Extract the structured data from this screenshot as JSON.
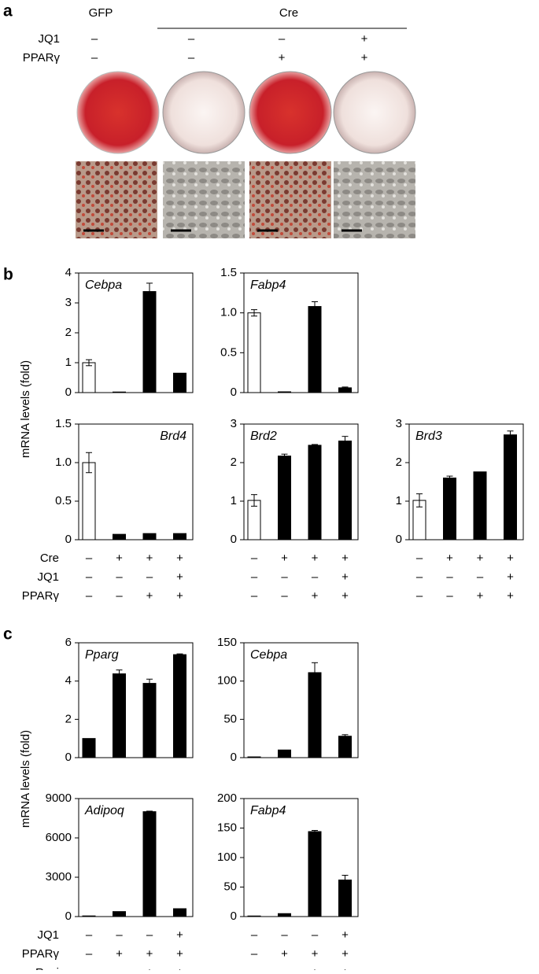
{
  "figure": {
    "panels": {
      "a": "a",
      "b": "b",
      "c": "c"
    },
    "a": {
      "headers": {
        "gfp": "GFP",
        "cre": "Cre"
      },
      "rows": [
        {
          "label": "JQ1",
          "signs": [
            "–",
            "–",
            "–",
            "+"
          ]
        },
        {
          "label": "PPARγ",
          "signs": [
            "–",
            "–",
            "+",
            "+"
          ]
        }
      ]
    },
    "b": {
      "ylabel": "mRNA levels (fold)",
      "rows": [
        {
          "label": "Cre",
          "signs": [
            "–",
            "+",
            "+",
            "+"
          ]
        },
        {
          "label": "JQ1",
          "signs": [
            "–",
            "–",
            "–",
            "+"
          ]
        },
        {
          "label": "PPARγ",
          "signs": [
            "–",
            "–",
            "+",
            "+"
          ]
        }
      ]
    },
    "c": {
      "ylabel": "mRNA levels (fold)",
      "rows": [
        {
          "label": "JQ1",
          "signs": [
            "–",
            "–",
            "–",
            "+"
          ]
        },
        {
          "label": "PPARγ",
          "signs": [
            "–",
            "+",
            "+",
            "+"
          ]
        },
        {
          "label": "Rosi",
          "signs": [
            "–",
            "–",
            "+",
            "+"
          ]
        }
      ]
    }
  },
  "chart_data": [
    {
      "type": "bar",
      "title": "Cebpa",
      "title_corner": "upper left",
      "values": [
        1.0,
        0.02,
        3.38,
        0.65
      ],
      "errors": [
        0.1,
        0,
        0.28,
        0
      ],
      "colors": [
        "#ffffff",
        "#000000",
        "#000000",
        "#000000"
      ],
      "ylim": [
        0,
        4
      ],
      "yticks": [
        0,
        1,
        2,
        3,
        4
      ]
    },
    {
      "type": "bar",
      "title": "Fabp4",
      "title_corner": "upper left",
      "values": [
        1.0,
        0.01,
        1.08,
        0.06
      ],
      "errors": [
        0.04,
        0,
        0.06,
        0.01
      ],
      "colors": [
        "#ffffff",
        "#000000",
        "#000000",
        "#000000"
      ],
      "ylim": [
        0,
        1.5
      ],
      "yticks": [
        0,
        0.5,
        {
          "value": 1,
          "label": "1.0"
        },
        1.5
      ]
    },
    {
      "type": "bar",
      "title": "Brd4",
      "title_corner": "upper right",
      "values": [
        1.0,
        0.07,
        0.08,
        0.08
      ],
      "errors": [
        0.13,
        0,
        0,
        0
      ],
      "colors": [
        "#ffffff",
        "#000000",
        "#000000",
        "#000000"
      ],
      "ylim": [
        0,
        1.5
      ],
      "yticks": [
        0,
        0.5,
        {
          "value": 1,
          "label": "1.0"
        },
        1.5
      ]
    },
    {
      "type": "bar",
      "title": "Brd2",
      "title_corner": "upper left",
      "values": [
        1.02,
        2.17,
        2.45,
        2.56
      ],
      "errors": [
        0.15,
        0.05,
        0.02,
        0.12
      ],
      "colors": [
        "#ffffff",
        "#000000",
        "#000000",
        "#000000"
      ],
      "ylim": [
        0,
        3
      ],
      "yticks": [
        0,
        1,
        2,
        3
      ]
    },
    {
      "type": "bar",
      "title": "Brd3",
      "title_corner": "upper left",
      "values": [
        1.02,
        1.6,
        1.76,
        2.72
      ],
      "errors": [
        0.17,
        0.05,
        0,
        0.1
      ],
      "colors": [
        "#ffffff",
        "#000000",
        "#000000",
        "#000000"
      ],
      "ylim": [
        0,
        3
      ],
      "yticks": [
        0,
        1,
        2,
        3
      ]
    },
    {
      "type": "bar",
      "title": "Pparg",
      "title_corner": "upper left",
      "values": [
        1.0,
        4.38,
        3.88,
        5.38
      ],
      "errors": [
        0,
        0.2,
        0.22,
        0.04
      ],
      "colors": [
        "#000000",
        "#000000",
        "#000000",
        "#000000"
      ],
      "ylim": [
        0,
        6
      ],
      "yticks": [
        0,
        2,
        4,
        6
      ]
    },
    {
      "type": "bar",
      "title": "Cebpa",
      "title_corner": "upper left",
      "values": [
        1,
        10,
        111,
        28
      ],
      "errors": [
        0,
        0,
        13,
        2
      ],
      "colors": [
        "#000000",
        "#000000",
        "#000000",
        "#000000"
      ],
      "ylim": [
        0,
        150
      ],
      "yticks": [
        0,
        50,
        100,
        150
      ]
    },
    {
      "type": "bar",
      "title": "Adipoq",
      "title_corner": "upper left",
      "values": [
        50,
        380,
        8000,
        600
      ],
      "errors": [
        0,
        0,
        40,
        0
      ],
      "colors": [
        "#000000",
        "#000000",
        "#000000",
        "#000000"
      ],
      "ylim": [
        0,
        9000
      ],
      "yticks": [
        0,
        3000,
        6000,
        9000
      ]
    },
    {
      "type": "bar",
      "title": "Fabp4",
      "title_corner": "upper left",
      "values": [
        1,
        5,
        144,
        62
      ],
      "errors": [
        0,
        0,
        2,
        8
      ],
      "colors": [
        "#000000",
        "#000000",
        "#000000",
        "#000000"
      ],
      "ylim": [
        0,
        200
      ],
      "yticks": [
        0,
        50,
        100,
        150,
        200
      ]
    }
  ]
}
